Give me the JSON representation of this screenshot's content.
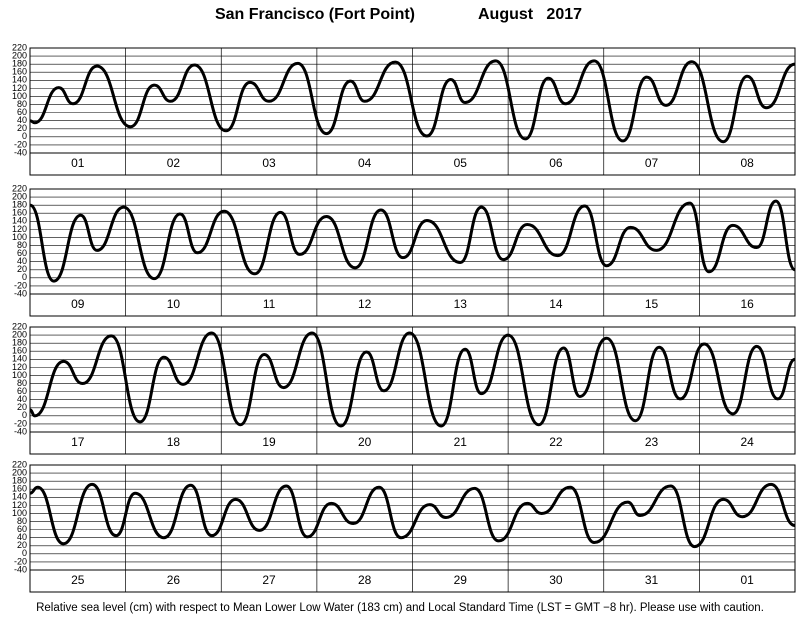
{
  "title": "San Francisco (Fort Point)",
  "date": "August   2017",
  "footnote": "Relative sea level (cm) with respect to Mean Lower Low Water (183 cm) and Local Standard Time (LST = GMT −8 hr). Please use with caution.",
  "chart_data": [
    {
      "type": "line",
      "xlim": [
        0,
        8
      ],
      "ylim": [
        -40,
        220
      ],
      "grid": true,
      "yticks": [
        220,
        200,
        180,
        160,
        140,
        120,
        100,
        80,
        60,
        40,
        20,
        0,
        -20,
        -40
      ],
      "xticks": [
        {
          "value": 0.5,
          "label": "01"
        },
        {
          "value": 1.5,
          "label": "02"
        },
        {
          "value": 2.5,
          "label": "03"
        },
        {
          "value": 3.5,
          "label": "04"
        },
        {
          "value": 4.5,
          "label": "05"
        },
        {
          "value": 5.5,
          "label": "06"
        },
        {
          "value": 6.5,
          "label": "07"
        },
        {
          "value": 7.5,
          "label": "08"
        }
      ],
      "x": [
        0,
        0.05,
        0.3,
        0.45,
        0.7,
        1.05,
        1.3,
        1.47,
        1.72,
        2.05,
        2.3,
        2.5,
        2.8,
        3.1,
        3.35,
        3.5,
        3.82,
        4.15,
        4.4,
        4.55,
        4.87,
        5.18,
        5.42,
        5.6,
        5.9,
        6.2,
        6.45,
        6.65,
        6.92,
        7.25,
        7.5,
        7.7,
        8.0
      ],
      "series": [
        {
          "color": "#000000",
          "values": [
            40,
            35,
            122,
            82,
            175,
            25,
            128,
            88,
            178,
            15,
            135,
            88,
            182,
            8,
            138,
            88,
            185,
            2,
            142,
            85,
            188,
            -5,
            145,
            82,
            188,
            -10,
            148,
            78,
            186,
            -12,
            150,
            72,
            180
          ]
        }
      ]
    },
    {
      "type": "line",
      "xlim": [
        0,
        8
      ],
      "ylim": [
        -40,
        220
      ],
      "grid": true,
      "yticks": [
        220,
        200,
        180,
        160,
        140,
        120,
        100,
        80,
        60,
        40,
        20,
        0,
        -20,
        -40
      ],
      "xticks": [
        {
          "value": 0.5,
          "label": "09"
        },
        {
          "value": 1.5,
          "label": "10"
        },
        {
          "value": 2.5,
          "label": "11"
        },
        {
          "value": 3.5,
          "label": "12"
        },
        {
          "value": 4.5,
          "label": "13"
        },
        {
          "value": 5.5,
          "label": "14"
        },
        {
          "value": 6.5,
          "label": "15"
        },
        {
          "value": 7.5,
          "label": "16"
        }
      ],
      "x": [
        0,
        0.25,
        0.53,
        0.7,
        0.98,
        1.3,
        1.57,
        1.75,
        2.03,
        2.35,
        2.62,
        2.82,
        3.1,
        3.4,
        3.67,
        3.9,
        4.15,
        4.5,
        4.72,
        4.95,
        5.2,
        5.52,
        5.8,
        6.03,
        6.28,
        6.55,
        6.9,
        7.1,
        7.35,
        7.6,
        7.8,
        8.0
      ],
      "series": [
        {
          "color": "#000000",
          "values": [
            180,
            -8,
            155,
            68,
            175,
            -2,
            158,
            62,
            165,
            10,
            162,
            58,
            152,
            25,
            168,
            50,
            142,
            38,
            175,
            45,
            132,
            55,
            178,
            30,
            125,
            68,
            185,
            15,
            130,
            75,
            190,
            20
          ]
        }
      ]
    },
    {
      "type": "line",
      "xlim": [
        0,
        8
      ],
      "ylim": [
        -40,
        220
      ],
      "grid": true,
      "yticks": [
        220,
        200,
        180,
        160,
        140,
        120,
        100,
        80,
        60,
        40,
        20,
        0,
        -20,
        -40
      ],
      "xticks": [
        {
          "value": 0.5,
          "label": "17"
        },
        {
          "value": 1.5,
          "label": "18"
        },
        {
          "value": 2.5,
          "label": "19"
        },
        {
          "value": 3.5,
          "label": "20"
        },
        {
          "value": 4.5,
          "label": "21"
        },
        {
          "value": 5.5,
          "label": "22"
        },
        {
          "value": 6.5,
          "label": "23"
        },
        {
          "value": 7.5,
          "label": "24"
        }
      ],
      "x": [
        0,
        0.05,
        0.35,
        0.55,
        0.85,
        1.15,
        1.4,
        1.6,
        1.9,
        2.2,
        2.45,
        2.65,
        2.95,
        3.25,
        3.52,
        3.7,
        3.97,
        4.3,
        4.55,
        4.72,
        5.0,
        5.32,
        5.58,
        5.75,
        6.03,
        6.33,
        6.58,
        6.8,
        7.05,
        7.35,
        7.6,
        7.82,
        8.0
      ],
      "series": [
        {
          "color": "#000000",
          "values": [
            15,
            0,
            135,
            80,
            198,
            -15,
            145,
            78,
            205,
            -22,
            152,
            70,
            205,
            -25,
            158,
            62,
            205,
            -25,
            165,
            55,
            200,
            -22,
            168,
            48,
            192,
            -12,
            170,
            42,
            178,
            5,
            172,
            42,
            140
          ]
        }
      ]
    },
    {
      "type": "line",
      "xlim": [
        0,
        8
      ],
      "ylim": [
        -40,
        220
      ],
      "grid": true,
      "yticks": [
        220,
        200,
        180,
        160,
        140,
        120,
        100,
        80,
        60,
        40,
        20,
        0,
        -20,
        -40
      ],
      "xticks": [
        {
          "value": 0.5,
          "label": "25"
        },
        {
          "value": 1.5,
          "label": "26"
        },
        {
          "value": 2.5,
          "label": "27"
        },
        {
          "value": 3.5,
          "label": "28"
        },
        {
          "value": 4.5,
          "label": "29"
        },
        {
          "value": 5.5,
          "label": "30"
        },
        {
          "value": 6.5,
          "label": "31"
        },
        {
          "value": 7.5,
          "label": "01"
        }
      ],
      "x": [
        0,
        0.08,
        0.35,
        0.65,
        0.9,
        1.1,
        1.4,
        1.68,
        1.9,
        2.15,
        2.4,
        2.68,
        2.9,
        3.15,
        3.38,
        3.65,
        3.88,
        4.18,
        4.35,
        4.65,
        4.9,
        5.2,
        5.35,
        5.65,
        5.9,
        6.25,
        6.38,
        6.7,
        6.95,
        7.25,
        7.45,
        7.75,
        8.0
      ],
      "series": [
        {
          "color": "#000000",
          "values": [
            150,
            165,
            25,
            172,
            45,
            150,
            40,
            170,
            45,
            135,
            58,
            168,
            42,
            125,
            75,
            165,
            40,
            122,
            90,
            162,
            32,
            125,
            100,
            165,
            28,
            128,
            95,
            168,
            18,
            135,
            92,
            172,
            70
          ]
        }
      ]
    }
  ]
}
